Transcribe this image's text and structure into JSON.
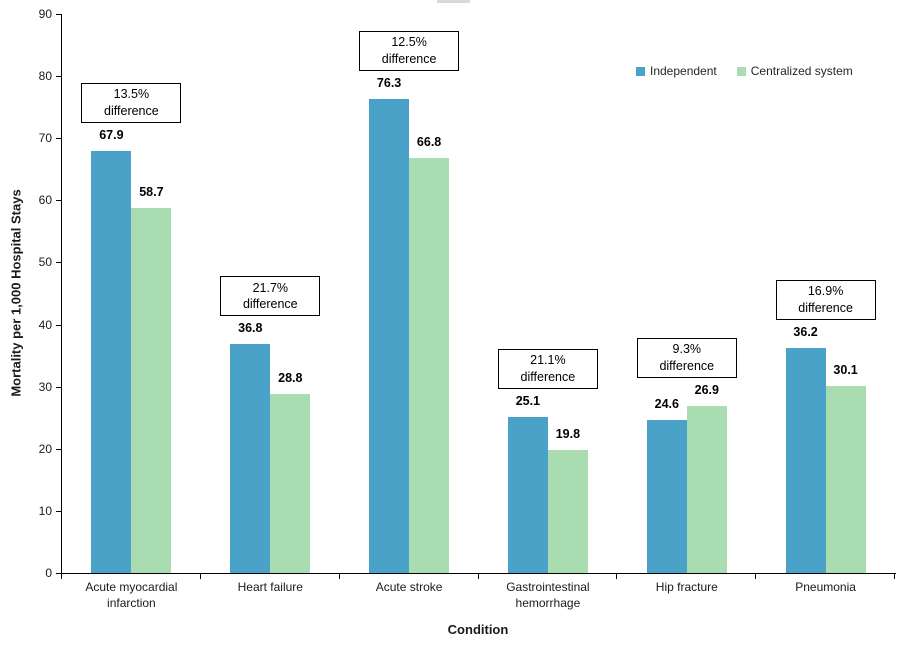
{
  "chart_data": {
    "type": "bar",
    "xlabel": "Condition",
    "ylabel": "Mortality per 1,000 Hospital Stays",
    "ylim": [
      0,
      90
    ],
    "ytick_interval": 10,
    "grid": false,
    "legend_position": "top-right",
    "axis_color": "#000000",
    "text_color": "#1a1a1a",
    "categories": [
      "Acute myocardial infarction",
      "Heart failure",
      "Acute stroke",
      "Gastrointestinal hemorrhage",
      "Hip fracture",
      "Pneumonia"
    ],
    "series": [
      {
        "name": "Independent",
        "color": "#4AA2C9",
        "values": [
          67.9,
          36.8,
          76.3,
          25.1,
          24.6,
          36.2
        ]
      },
      {
        "name": "Centralized system",
        "color": "#AADCB2",
        "values": [
          58.7,
          28.8,
          66.8,
          19.8,
          26.9,
          30.1
        ]
      }
    ],
    "annotations": [
      {
        "value": "13.5%",
        "label": "difference"
      },
      {
        "value": "21.7%",
        "label": "difference"
      },
      {
        "value": "12.5%",
        "label": "difference"
      },
      {
        "value": "21.1%",
        "label": "difference"
      },
      {
        "value": "9.3%",
        "label": "difference"
      },
      {
        "value": "16.9%",
        "label": "difference"
      }
    ]
  }
}
